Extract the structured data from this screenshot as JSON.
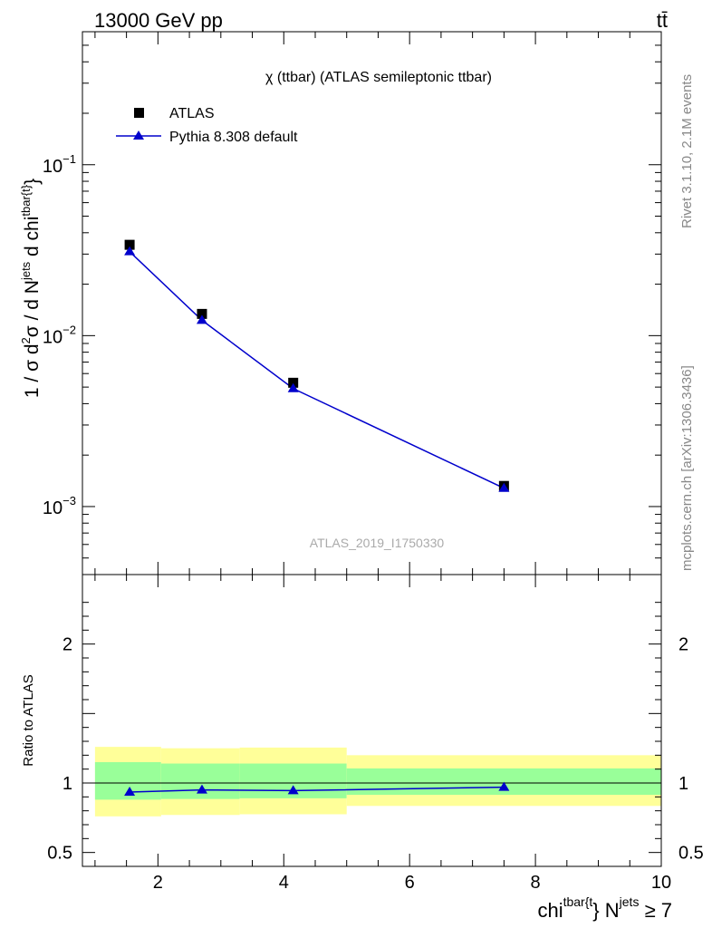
{
  "header": {
    "energy_label": "13000 GeV pp",
    "process_label": "tt̄"
  },
  "side_labels": {
    "rivet": "Rivet 3.1.10,  2.1M events",
    "mcplots": "mcplots.cern.ch [arXiv:1306.3436]"
  },
  "colors": {
    "data": "#000000",
    "mc": "#0000cc",
    "band_inner": "#99ff99",
    "band_outer": "#ffff99"
  },
  "chart_data": [
    {
      "type": "line",
      "title": "χ (ttbar) (ATLAS semileptonic ttbar)",
      "watermark": "ATLAS_2019_I1750330",
      "ylabel": {
        "main": "1 / σ d",
        "sup1": "2",
        "mid": "σ / d N",
        "sup2": "jets",
        "tail": " d chi",
        "sup3": "tbar{t}",
        "close": "}"
      },
      "yscale": "log",
      "xlim": [
        0.8,
        10.0
      ],
      "ylim": [
        0.0004,
        0.6
      ],
      "y_ticks": [
        {
          "value": 0.1,
          "base": "10",
          "exp": "−1"
        },
        {
          "value": 0.01,
          "base": "10",
          "exp": "−2"
        },
        {
          "value": 0.001,
          "base": "10",
          "exp": "−3"
        }
      ],
      "legend": [
        {
          "name": "ATLAS",
          "marker": "square"
        },
        {
          "name": "Pythia 8.308 default",
          "marker": "triangle"
        }
      ],
      "series": [
        {
          "name": "ATLAS",
          "x": [
            1.55,
            2.7,
            4.15,
            7.5
          ],
          "values": [
            0.034,
            0.0134,
            0.0053,
            0.00132
          ]
        },
        {
          "name": "Pythia 8.308 default",
          "x": [
            1.55,
            2.7,
            4.15,
            7.5
          ],
          "values": [
            0.031,
            0.0123,
            0.0049,
            0.00128
          ]
        }
      ]
    },
    {
      "type": "line",
      "ylabel": "Ratio to ATLAS",
      "xlabel": {
        "main": "chi",
        "sup1": "tbar{t",
        "mid": "} N",
        "sup2": "jets",
        "tail": " ≥ 7"
      },
      "xlim": [
        0.8,
        10.0
      ],
      "ylim": [
        0.4,
        2.5
      ],
      "x_ticks": [
        "2",
        "4",
        "6",
        "8",
        "10"
      ],
      "y_ticks": [
        "0.5",
        "1",
        "2"
      ],
      "reference_line": 1.0,
      "bins": [
        {
          "lo": 1.0,
          "hi": 2.05,
          "inner": [
            0.88,
            1.15
          ],
          "outer": [
            0.76,
            1.26
          ]
        },
        {
          "lo": 2.05,
          "hi": 3.3,
          "inner": [
            0.885,
            1.14
          ],
          "outer": [
            0.77,
            1.25
          ]
        },
        {
          "lo": 3.3,
          "hi": 5.0,
          "inner": [
            0.89,
            1.14
          ],
          "outer": [
            0.775,
            1.255
          ]
        },
        {
          "lo": 5.0,
          "hi": 10.0,
          "inner": [
            0.915,
            1.105
          ],
          "outer": [
            0.835,
            1.2
          ]
        }
      ],
      "series": [
        {
          "name": "Pythia 8.308 default",
          "x": [
            1.55,
            2.7,
            4.15,
            7.5
          ],
          "values": [
            0.935,
            0.95,
            0.945,
            0.97
          ]
        }
      ]
    }
  ]
}
